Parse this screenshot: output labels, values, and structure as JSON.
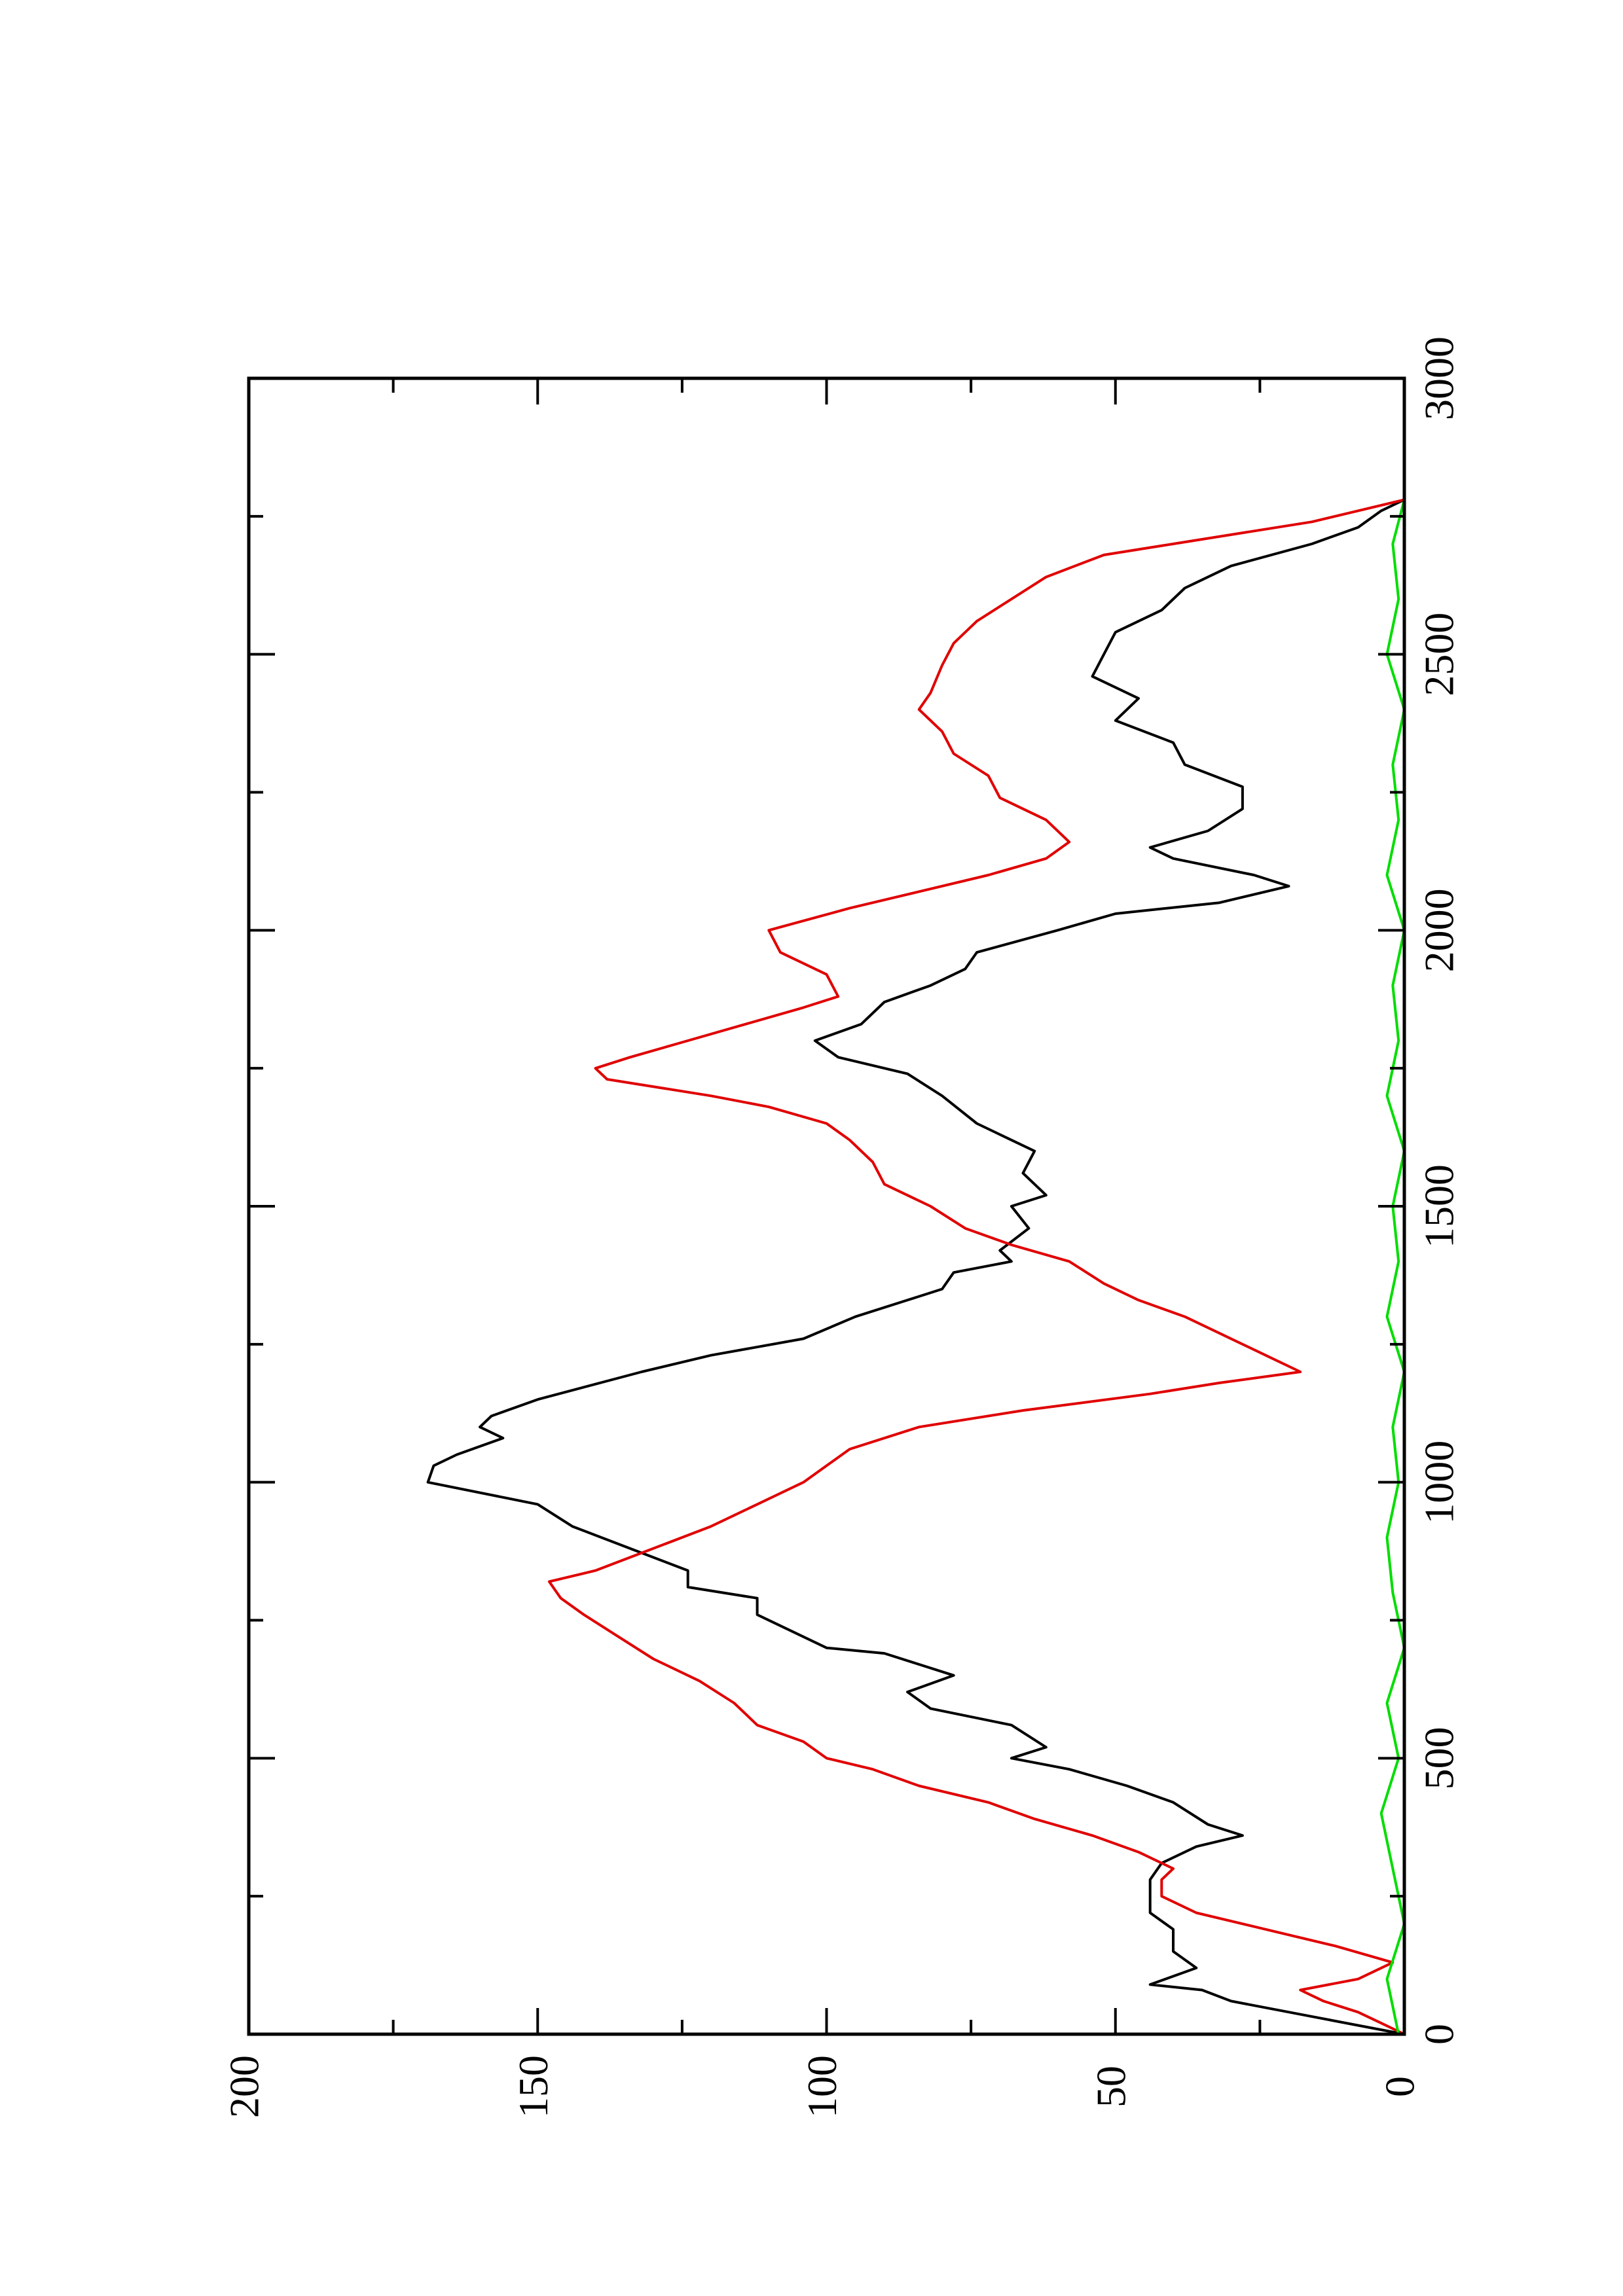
{
  "chart_data": {
    "type": "line",
    "orientation": "rotated-90-ccw",
    "title": "",
    "xlabel": "",
    "ylabel": "",
    "xlim": [
      0,
      3000
    ],
    "ylim": [
      0,
      200
    ],
    "x_ticks": [
      "0",
      "500",
      "1000",
      "1500",
      "2000",
      "2500",
      "3000"
    ],
    "y_ticks": [
      "0",
      "50",
      "100",
      "150",
      "200"
    ],
    "grid": false,
    "series": [
      {
        "color": "#000000",
        "points": [
          [
            0,
            0
          ],
          [
            30,
            15
          ],
          [
            60,
            30
          ],
          [
            80,
            35
          ],
          [
            90,
            44
          ],
          [
            120,
            36
          ],
          [
            150,
            40
          ],
          [
            190,
            40
          ],
          [
            220,
            44
          ],
          [
            250,
            44
          ],
          [
            280,
            44
          ],
          [
            310,
            42
          ],
          [
            340,
            36
          ],
          [
            360,
            28
          ],
          [
            380,
            34
          ],
          [
            420,
            40
          ],
          [
            450,
            48
          ],
          [
            480,
            58
          ],
          [
            500,
            68
          ],
          [
            520,
            62
          ],
          [
            560,
            68
          ],
          [
            590,
            82
          ],
          [
            620,
            86
          ],
          [
            650,
            78
          ],
          [
            690,
            90
          ],
          [
            700,
            100
          ],
          [
            740,
            108
          ],
          [
            760,
            112
          ],
          [
            790,
            112
          ],
          [
            810,
            124
          ],
          [
            840,
            124
          ],
          [
            880,
            134
          ],
          [
            920,
            144
          ],
          [
            960,
            150
          ],
          [
            1000,
            169
          ],
          [
            1030,
            168
          ],
          [
            1050,
            164
          ],
          [
            1080,
            156
          ],
          [
            1100,
            160
          ],
          [
            1120,
            158
          ],
          [
            1150,
            150
          ],
          [
            1200,
            132
          ],
          [
            1230,
            120
          ],
          [
            1260,
            104
          ],
          [
            1300,
            95
          ],
          [
            1330,
            86
          ],
          [
            1350,
            80
          ],
          [
            1380,
            78
          ],
          [
            1400,
            68
          ],
          [
            1420,
            70
          ],
          [
            1460,
            65
          ],
          [
            1500,
            68
          ],
          [
            1520,
            62
          ],
          [
            1560,
            66
          ],
          [
            1600,
            64
          ],
          [
            1630,
            70
          ],
          [
            1650,
            74
          ],
          [
            1700,
            80
          ],
          [
            1740,
            86
          ],
          [
            1770,
            98
          ],
          [
            1800,
            102
          ],
          [
            1830,
            94
          ],
          [
            1870,
            90
          ],
          [
            1900,
            82
          ],
          [
            1930,
            76
          ],
          [
            1960,
            74
          ],
          [
            2000,
            60
          ],
          [
            2030,
            50
          ],
          [
            2050,
            32
          ],
          [
            2080,
            20
          ],
          [
            2100,
            26
          ],
          [
            2130,
            40
          ],
          [
            2150,
            44
          ],
          [
            2180,
            34
          ],
          [
            2220,
            28
          ],
          [
            2260,
            28
          ],
          [
            2300,
            38
          ],
          [
            2340,
            40
          ],
          [
            2380,
            50
          ],
          [
            2420,
            46
          ],
          [
            2460,
            54
          ],
          [
            2500,
            52
          ],
          [
            2540,
            50
          ],
          [
            2580,
            42
          ],
          [
            2620,
            38
          ],
          [
            2660,
            30
          ],
          [
            2700,
            16
          ],
          [
            2730,
            8
          ],
          [
            2760,
            4
          ],
          [
            2780,
            0
          ]
        ]
      },
      {
        "color": "#e00000",
        "points": [
          [
            0,
            0
          ],
          [
            20,
            4
          ],
          [
            40,
            8
          ],
          [
            60,
            14
          ],
          [
            80,
            18
          ],
          [
            100,
            8
          ],
          [
            130,
            2
          ],
          [
            160,
            12
          ],
          [
            190,
            24
          ],
          [
            220,
            36
          ],
          [
            250,
            42
          ],
          [
            280,
            42
          ],
          [
            300,
            40
          ],
          [
            330,
            46
          ],
          [
            360,
            54
          ],
          [
            390,
            64
          ],
          [
            420,
            72
          ],
          [
            450,
            84
          ],
          [
            480,
            92
          ],
          [
            500,
            100
          ],
          [
            530,
            104
          ],
          [
            560,
            112
          ],
          [
            600,
            116
          ],
          [
            640,
            122
          ],
          [
            680,
            130
          ],
          [
            720,
            136
          ],
          [
            760,
            142
          ],
          [
            790,
            146
          ],
          [
            820,
            148
          ],
          [
            840,
            140
          ],
          [
            880,
            130
          ],
          [
            920,
            120
          ],
          [
            960,
            112
          ],
          [
            1000,
            104
          ],
          [
            1030,
            100
          ],
          [
            1060,
            96
          ],
          [
            1100,
            84
          ],
          [
            1130,
            66
          ],
          [
            1160,
            44
          ],
          [
            1180,
            32
          ],
          [
            1200,
            18
          ],
          [
            1230,
            24
          ],
          [
            1260,
            30
          ],
          [
            1300,
            38
          ],
          [
            1330,
            46
          ],
          [
            1360,
            52
          ],
          [
            1400,
            58
          ],
          [
            1430,
            68
          ],
          [
            1460,
            76
          ],
          [
            1500,
            82
          ],
          [
            1540,
            90
          ],
          [
            1580,
            92
          ],
          [
            1620,
            96
          ],
          [
            1650,
            100
          ],
          [
            1680,
            110
          ],
          [
            1700,
            120
          ],
          [
            1730,
            138
          ],
          [
            1750,
            140
          ],
          [
            1770,
            134
          ],
          [
            1800,
            124
          ],
          [
            1830,
            114
          ],
          [
            1860,
            104
          ],
          [
            1880,
            98
          ],
          [
            1920,
            100
          ],
          [
            1960,
            108
          ],
          [
            2000,
            110
          ],
          [
            2040,
            96
          ],
          [
            2070,
            84
          ],
          [
            2100,
            72
          ],
          [
            2130,
            62
          ],
          [
            2160,
            58
          ],
          [
            2200,
            62
          ],
          [
            2240,
            70
          ],
          [
            2280,
            72
          ],
          [
            2320,
            78
          ],
          [
            2360,
            80
          ],
          [
            2400,
            84
          ],
          [
            2430,
            82
          ],
          [
            2480,
            80
          ],
          [
            2520,
            78
          ],
          [
            2560,
            74
          ],
          [
            2600,
            68
          ],
          [
            2640,
            62
          ],
          [
            2680,
            52
          ],
          [
            2700,
            40
          ],
          [
            2720,
            28
          ],
          [
            2740,
            16
          ],
          [
            2760,
            8
          ],
          [
            2780,
            0
          ]
        ]
      },
      {
        "color": "#00dd00",
        "points": [
          [
            0,
            1
          ],
          [
            100,
            3
          ],
          [
            200,
            0
          ],
          [
            300,
            2
          ],
          [
            400,
            4
          ],
          [
            500,
            1
          ],
          [
            600,
            3
          ],
          [
            700,
            0
          ],
          [
            800,
            2
          ],
          [
            900,
            3
          ],
          [
            1000,
            1
          ],
          [
            1100,
            2
          ],
          [
            1200,
            0
          ],
          [
            1300,
            3
          ],
          [
            1400,
            1
          ],
          [
            1500,
            2
          ],
          [
            1600,
            0
          ],
          [
            1700,
            3
          ],
          [
            1800,
            1
          ],
          [
            1900,
            2
          ],
          [
            2000,
            0
          ],
          [
            2100,
            3
          ],
          [
            2200,
            1
          ],
          [
            2300,
            2
          ],
          [
            2400,
            0
          ],
          [
            2500,
            3
          ],
          [
            2600,
            1
          ],
          [
            2700,
            2
          ],
          [
            2780,
            0
          ]
        ]
      }
    ]
  }
}
